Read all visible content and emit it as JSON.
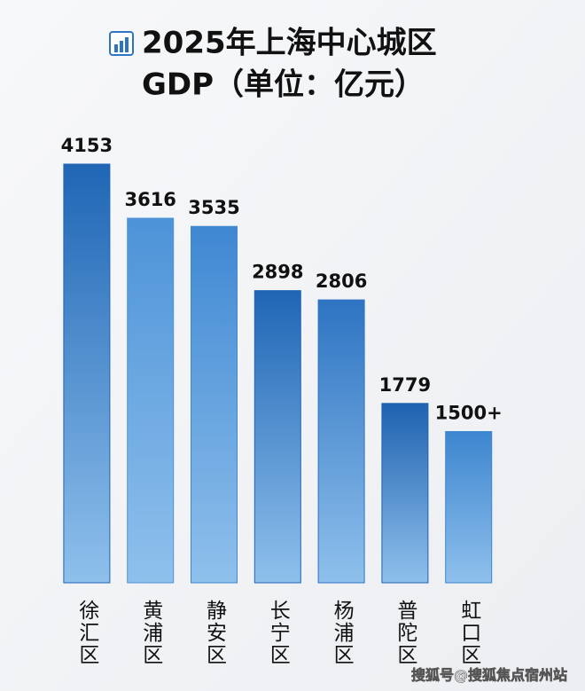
{
  "chart_data": {
    "type": "bar",
    "title": "2025年上海中心城区",
    "subtitle": "GDP（单位：亿元）",
    "categories": [
      "徐汇区",
      "黄浦区",
      "静安区",
      "长宁区",
      "杨浦区",
      "普陀区",
      "虹口区"
    ],
    "values": [
      4153,
      3616,
      3535,
      2898,
      2806,
      1779,
      1500
    ],
    "value_labels": [
      "4153",
      "3616",
      "3535",
      "2898",
      "2806",
      "1779",
      "1500+"
    ],
    "colors": [
      "#1f66b5",
      "#4d93d8",
      "#3f88d2",
      "#1f66b5",
      "#2e74c2",
      "#1f62b0",
      "#3d86cf"
    ],
    "watermark": "搜狐号@搜狐焦点宿州站"
  }
}
